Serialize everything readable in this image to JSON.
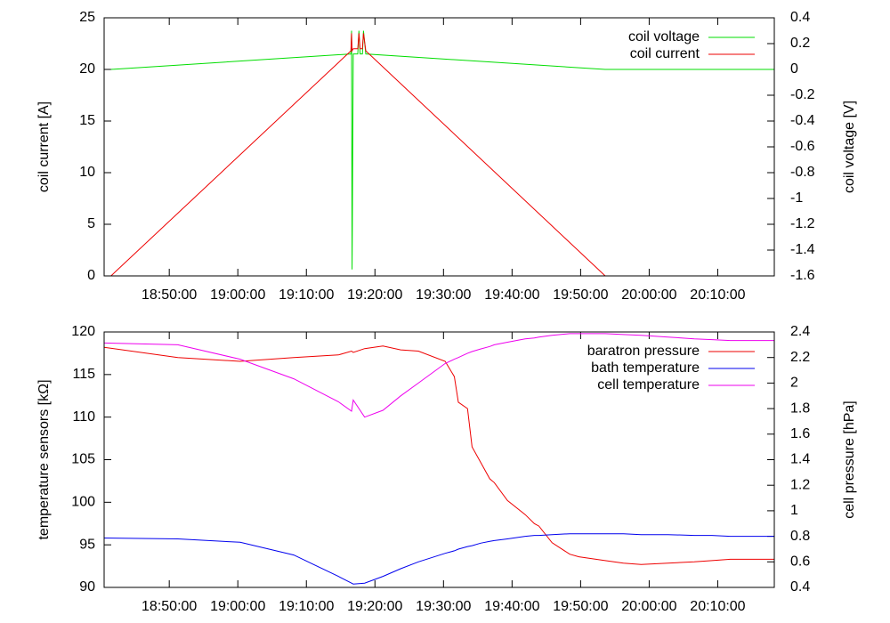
{
  "chart_data": [
    {
      "type": "line",
      "y_label": "coil current [A]",
      "y2_label": "coil voltage [V]",
      "x": [
        "18:41:30",
        "19:16:30",
        "19:16:35",
        "19:16:40",
        "19:16:50",
        "19:17:30",
        "19:17:40",
        "19:17:50",
        "19:18:10",
        "19:18:20",
        "19:18:40",
        "19:53:35",
        "20:18:15"
      ],
      "xlim": [
        "18:40:30",
        "20:18:15"
      ],
      "xticks": [
        "18:50:00",
        "19:00:00",
        "19:10:00",
        "19:20:00",
        "19:30:00",
        "19:40:00",
        "19:50:00",
        "20:00:00",
        "20:10:00"
      ],
      "ylim": [
        0,
        25
      ],
      "yticks": [
        0,
        5,
        10,
        15,
        20,
        25
      ],
      "y2lim": [
        -1.6,
        0.4
      ],
      "y2ticks": [
        -1.6,
        -1.4,
        -1.2,
        -1,
        -0.8,
        -0.6,
        -0.4,
        -0.2,
        0,
        0.2,
        0.4
      ],
      "legend": "top right",
      "series": [
        {
          "name": "coil voltage",
          "color": "#00dd00",
          "axis": "y2",
          "values": [
            0,
            0.12,
            0.3,
            -1.55,
            0.12,
            0.12,
            0.3,
            0.12,
            0.12,
            0.3,
            0.12,
            0,
            0
          ]
        },
        {
          "name": "coil current",
          "color": "#ee0000",
          "values": [
            0,
            21.8,
            23.5,
            21.8,
            22,
            22,
            23.5,
            22,
            22,
            23.5,
            21.8,
            0,
            0
          ]
        }
      ]
    },
    {
      "type": "line",
      "y_label": "temperature sensors [kΩ]",
      "y2_label": "cell pressure [hPa]",
      "x": [
        "18:40:30",
        "18:51:15",
        "19:00:20",
        "19:08:10",
        "19:14:40",
        "19:16:35",
        "19:16:50",
        "19:18:30",
        "19:21:10",
        "19:23:45",
        "19:26:20",
        "19:30:15",
        "19:31:35",
        "19:32:10",
        "19:33:30",
        "19:34:10",
        "19:35:25",
        "19:36:45",
        "19:37:25",
        "19:39:20",
        "19:41:55",
        "19:43:15",
        "19:43:55",
        "19:45:50",
        "19:48:25",
        "19:49:45",
        "19:53:35",
        "19:56:15",
        "19:58:50",
        "20:02:45",
        "20:06:35",
        "20:09:10",
        "20:11:50",
        "20:18:15"
      ],
      "xlim": [
        "18:40:30",
        "20:18:15"
      ],
      "xticks": [
        "18:50:00",
        "19:00:00",
        "19:10:00",
        "19:20:00",
        "19:30:00",
        "19:40:00",
        "19:50:00",
        "20:00:00",
        "20:10:00"
      ],
      "ylim": [
        90,
        120
      ],
      "yticks": [
        90,
        95,
        100,
        105,
        110,
        115,
        120
      ],
      "y2lim": [
        0.4,
        2.4
      ],
      "y2ticks": [
        0.4,
        0.6,
        0.8,
        1,
        1.2,
        1.4,
        1.6,
        1.8,
        2,
        2.2,
        2.4
      ],
      "legend": "top right",
      "series": [
        {
          "name": "baratron pressure",
          "color": "#ee0000",
          "axis": "y2",
          "values": [
            2.28,
            2.2,
            2.17,
            2.2,
            2.22,
            2.25,
            2.24,
            2.27,
            2.29,
            2.26,
            2.25,
            2.17,
            2.05,
            1.85,
            1.8,
            1.5,
            1.38,
            1.25,
            1.22,
            1.08,
            0.97,
            0.9,
            0.88,
            0.75,
            0.66,
            0.64,
            0.61,
            0.59,
            0.58,
            0.59,
            0.6,
            0.61,
            0.62,
            0.62
          ]
        },
        {
          "name": "bath temperature",
          "color": "#0000ee",
          "values": [
            95.8,
            95.7,
            95.3,
            93.8,
            91.3,
            90.5,
            90.4,
            90.5,
            91.3,
            92.2,
            93,
            94,
            94.3,
            94.5,
            94.8,
            94.9,
            95.2,
            95.4,
            95.5,
            95.7,
            96,
            96.1,
            96.1,
            96.2,
            96.3,
            96.3,
            96.3,
            96.3,
            96.2,
            96.2,
            96.1,
            96.1,
            96,
            96
          ]
        },
        {
          "name": "cell temperature",
          "color": "#ee00ee",
          "values": [
            118.7,
            118.5,
            116.8,
            114.5,
            111.8,
            110.7,
            112,
            110,
            110.8,
            112.5,
            114,
            116.3,
            116.8,
            117,
            117.5,
            117.7,
            118,
            118.3,
            118.5,
            118.8,
            119.2,
            119.3,
            119.4,
            119.6,
            119.8,
            119.8,
            119.8,
            119.7,
            119.6,
            119.4,
            119.2,
            119.1,
            119,
            119
          ]
        }
      ]
    }
  ]
}
